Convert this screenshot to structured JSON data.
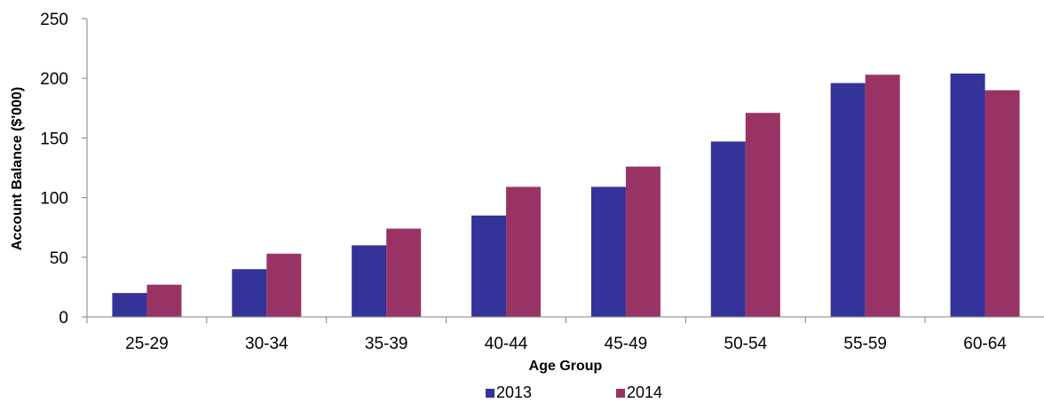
{
  "chart_data": {
    "type": "bar",
    "categories": [
      "25-29",
      "30-34",
      "35-39",
      "40-44",
      "45-49",
      "50-54",
      "55-59",
      "60-64"
    ],
    "series": [
      {
        "name": "2013",
        "color": "#333399",
        "values": [
          20,
          40,
          60,
          85,
          109,
          147,
          196,
          204
        ]
      },
      {
        "name": "2014",
        "color": "#993366",
        "values": [
          27,
          53,
          74,
          109,
          126,
          171,
          203,
          190
        ]
      }
    ],
    "xlabel": "Age Group",
    "ylabel": "Account Balance ($'000)",
    "ylim": [
      0,
      250
    ],
    "yticks": [
      0,
      50,
      100,
      150,
      200,
      250
    ],
    "grid": false,
    "legend_position": "bottom-center"
  }
}
